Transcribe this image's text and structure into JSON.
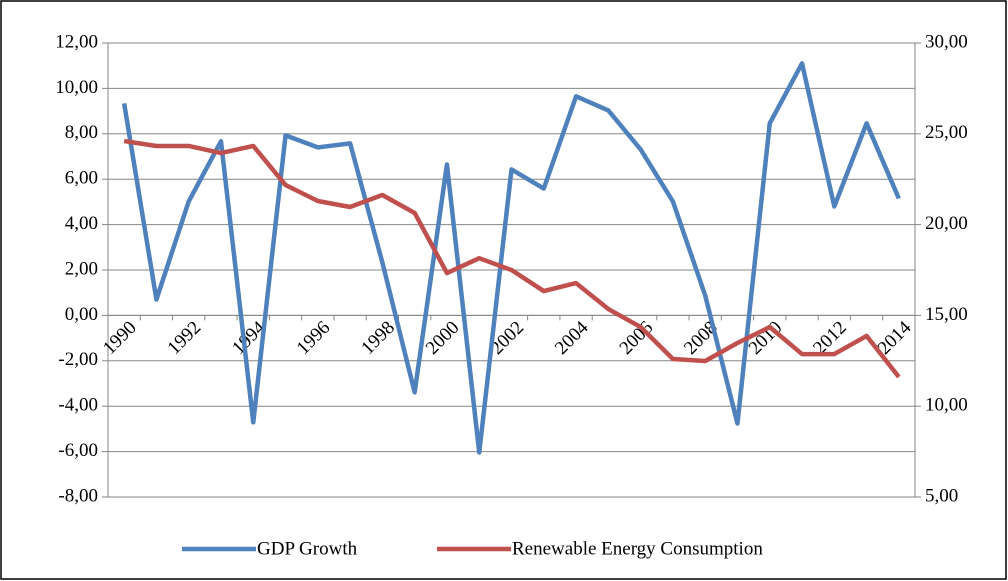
{
  "chart_data": {
    "type": "line",
    "categories": [
      "1990",
      null,
      "1992",
      null,
      "1994",
      null,
      "1996",
      null,
      "1998",
      null,
      "2000",
      null,
      "2002",
      null,
      "2004",
      null,
      "2006",
      null,
      "2008",
      null,
      "2010",
      null,
      "2012",
      null,
      "2014"
    ],
    "series": [
      {
        "name": "GDP Growth",
        "color": "#4f81bd",
        "values": [
          9.34,
          0.7,
          5.02,
          7.67,
          -4.71,
          7.93,
          7.4,
          7.58,
          2.33,
          -3.39,
          6.65,
          -6.04,
          6.43,
          5.59,
          9.65,
          9.03,
          7.31,
          5.02,
          0.88,
          -4.76,
          8.46,
          11.1,
          4.8,
          8.46,
          5.15
        ]
      },
      {
        "name": "Renewable Energy Consumption",
        "color": "#c0504d",
        "axis": "y2",
        "values": [
          24.6,
          24.33,
          24.33,
          23.94,
          24.33,
          22.18,
          21.3,
          20.97,
          21.63,
          20.64,
          17.33,
          18.15,
          17.5,
          16.34,
          16.78,
          15.35,
          14.36,
          12.6,
          12.49,
          13.48,
          14.36,
          12.87,
          12.87,
          13.87,
          11.61
        ]
      }
    ],
    "ylim": [
      -8,
      12
    ],
    "yticks": [
      {
        "value": -8,
        "label": "-8,00"
      },
      {
        "value": -6,
        "label": "-6,00"
      },
      {
        "value": -4,
        "label": "-4,00"
      },
      {
        "value": -2,
        "label": "-2,00"
      },
      {
        "value": 0,
        "label": "0,00"
      },
      {
        "value": 2,
        "label": "2,00"
      },
      {
        "value": 4,
        "label": "4,00"
      },
      {
        "value": 6,
        "label": "6,00"
      },
      {
        "value": 8,
        "label": "8,00"
      },
      {
        "value": 10,
        "label": "10,00"
      },
      {
        "value": 12,
        "label": "12,00"
      }
    ],
    "y2lim": [
      5,
      30
    ],
    "y2ticks": [
      {
        "value": 5,
        "label": "5,00"
      },
      {
        "value": 10,
        "label": "10,00"
      },
      {
        "value": 15,
        "label": "15,00"
      },
      {
        "value": 20,
        "label": "20,00"
      },
      {
        "value": 25,
        "label": "25,00"
      },
      {
        "value": 30,
        "label": "30,00"
      }
    ],
    "grid": true
  }
}
